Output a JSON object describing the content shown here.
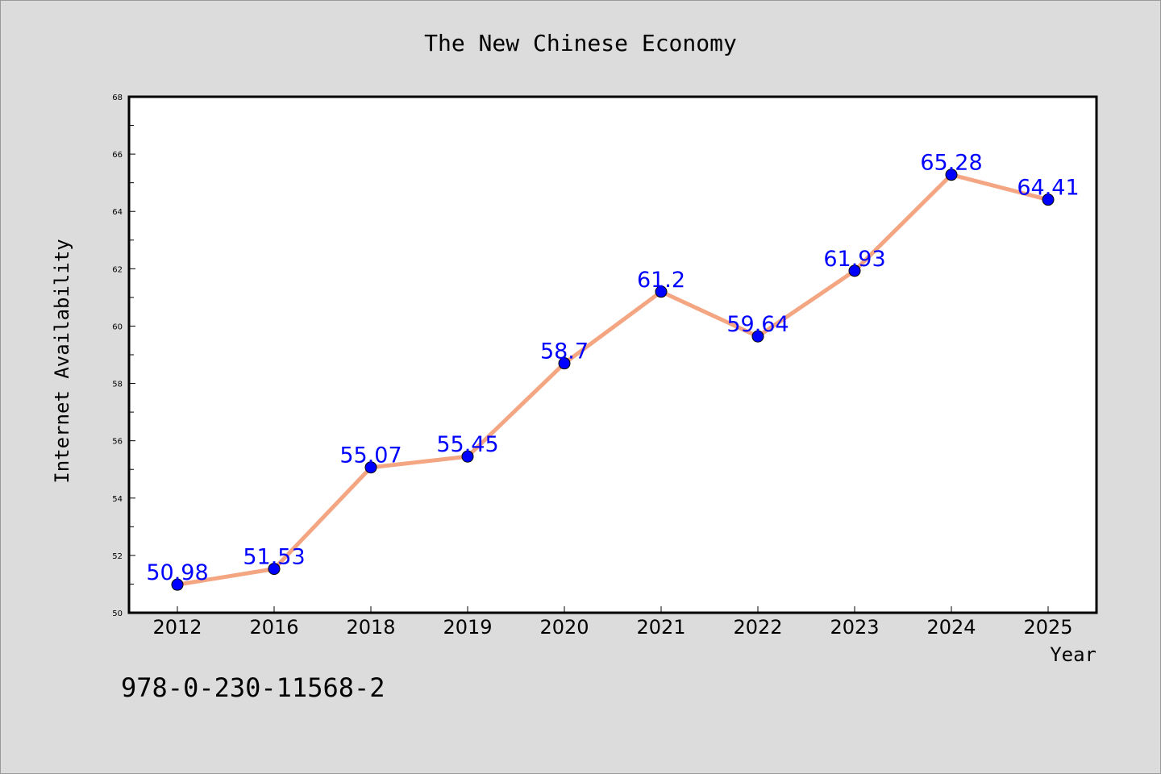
{
  "page": {
    "background": "#dcdcdc",
    "footer_text": "978-0-230-11568-2"
  },
  "chart_data": {
    "type": "line",
    "title": "The New Chinese Economy",
    "xlabel": "Year",
    "ylabel": "Internet Availability",
    "categories": [
      "2012",
      "2016",
      "2018",
      "2019",
      "2020",
      "2021",
      "2022",
      "2023",
      "2024",
      "2025"
    ],
    "values": [
      50.98,
      51.53,
      55.07,
      55.45,
      58.7,
      61.2,
      59.64,
      61.93,
      65.28,
      64.41
    ],
    "data_labels": [
      "50.98",
      "51.53",
      "55.07",
      "55.45",
      "58.7",
      "61.2",
      "59.64",
      "61.93",
      "65.28",
      "64.41"
    ],
    "ylim": [
      50,
      68
    ],
    "yticks": [
      50,
      52,
      54,
      56,
      58,
      60,
      62,
      64,
      66,
      68
    ],
    "grid": false,
    "legend": "none",
    "colors": {
      "line": "#f4a582",
      "marker": "#0000ff",
      "data_label": "#0000ff",
      "plot_background": "#ffffff",
      "axes": "#000000"
    }
  }
}
